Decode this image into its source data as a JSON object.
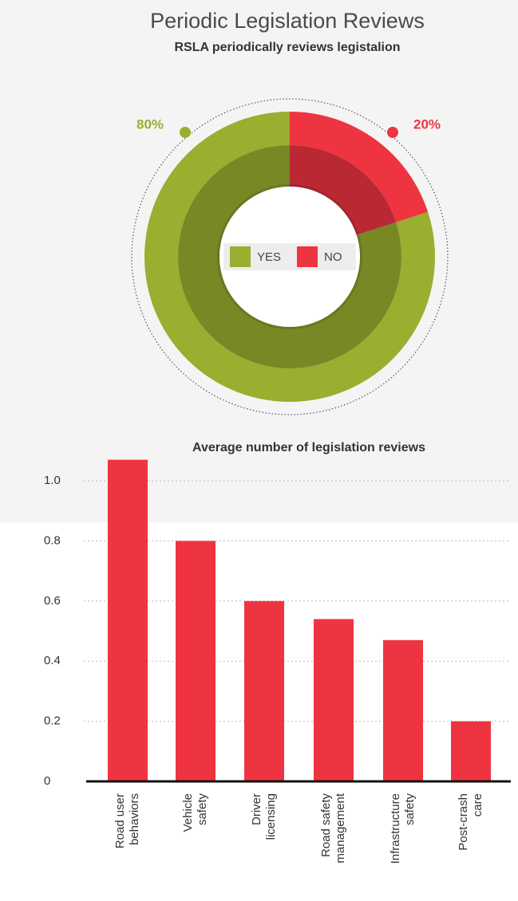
{
  "chart_data": [
    {
      "type": "pie",
      "title": "Periodic Legislation Reviews",
      "subtitle": "RSLA periodically reviews legistalion",
      "categories": [
        "YES",
        "NO"
      ],
      "values": [
        80,
        20
      ],
      "value_labels": [
        "80%",
        "20%"
      ],
      "colors": [
        "#9aae2f",
        "#ee3441"
      ],
      "legend": "center"
    },
    {
      "type": "bar",
      "title": "Average number of legislation reviews",
      "categories": [
        "Road user behaviors",
        "Vehicle safety",
        "Driver licensing",
        "Road safety management",
        "Infrastructure safety",
        "Post-crash care"
      ],
      "values": [
        1.07,
        0.8,
        0.6,
        0.54,
        0.47,
        0.2
      ],
      "color": "#ee3441",
      "ylim": [
        0,
        1.1
      ],
      "yticks": [
        0,
        0.2,
        0.4,
        0.6,
        0.8,
        {
          "value": 1,
          "label": "1.0"
        }
      ],
      "grid": true
    }
  ]
}
